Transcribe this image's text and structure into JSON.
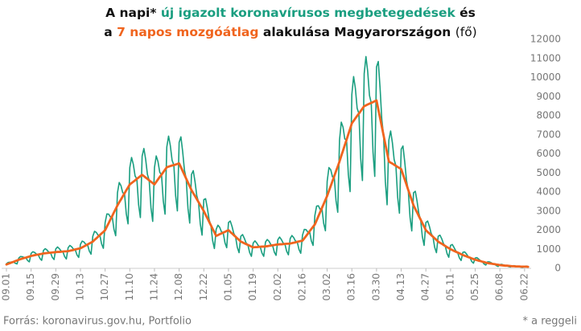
{
  "chart_data": {
    "type": "line",
    "title_parts": [
      "A napi*",
      "és",
      "a",
      "alakulása Magyarországon",
      "(fő)"
    ],
    "source": "Forrás: koronavirus.gov.hu, Portfolio",
    "note": "* a reggeli",
    "categories": [
      "09.01",
      null,
      null,
      null,
      null,
      null,
      null,
      null,
      null,
      null,
      null,
      null,
      null,
      null,
      "09.15",
      null,
      null,
      null,
      null,
      null,
      null,
      null,
      null,
      null,
      null,
      null,
      null,
      null,
      "09.29",
      null,
      null,
      null,
      null,
      null,
      null,
      null,
      null,
      null,
      null,
      null,
      null,
      null,
      "10.13",
      null,
      null,
      null,
      null,
      null,
      null,
      null,
      null,
      null,
      null,
      null,
      null,
      null,
      "10.27",
      null,
      null,
      null,
      null,
      null,
      null,
      null,
      null,
      null,
      null,
      null,
      null,
      null,
      "11.10",
      null,
      null,
      null,
      null,
      null,
      null,
      null,
      null,
      null,
      null,
      null,
      null,
      null,
      "11.24",
      null,
      null,
      null,
      null,
      null,
      null,
      null,
      null,
      null,
      null,
      null,
      null,
      null,
      "12.08",
      null,
      null,
      null,
      null,
      null,
      null,
      null,
      null,
      null,
      null,
      null,
      null,
      null,
      "12.22",
      null,
      null,
      null,
      null,
      null,
      null,
      null,
      null,
      null,
      null,
      null,
      null,
      null,
      "01.05",
      null,
      null,
      null,
      null,
      null,
      null,
      null,
      null,
      null,
      null,
      null,
      null,
      null,
      "01.19",
      null,
      null,
      null,
      null,
      null,
      null,
      null,
      null,
      null,
      null,
      null,
      null,
      null,
      "02.02",
      null,
      null,
      null,
      null,
      null,
      null,
      null,
      null,
      null,
      null,
      null,
      null,
      null,
      "02.16",
      null,
      null,
      null,
      null,
      null,
      null,
      null,
      null,
      null,
      null,
      null,
      null,
      null,
      "03.02",
      null,
      null,
      null,
      null,
      null,
      null,
      null,
      null,
      null,
      null,
      null,
      null,
      null,
      "03.16",
      null,
      null,
      null,
      null,
      null,
      null,
      null,
      null,
      null,
      null,
      null,
      null,
      null,
      "03.30",
      null,
      null,
      null,
      null,
      null,
      null,
      null,
      null,
      null,
      null,
      null,
      null,
      null,
      "04.13",
      null,
      null,
      null,
      null,
      null,
      null,
      null,
      null,
      null,
      null,
      null,
      null,
      null,
      "04.27",
      null,
      null,
      null,
      null,
      null,
      null,
      null,
      null,
      null,
      null,
      null,
      null,
      null,
      "05.11",
      null,
      null,
      null,
      null,
      null,
      null,
      null,
      null,
      null,
      null,
      null,
      null,
      null,
      "05.25",
      null,
      null,
      null,
      null,
      null,
      null,
      null,
      null,
      null,
      null,
      null,
      null,
      null,
      "06.08",
      null,
      null,
      null,
      null,
      null,
      null,
      null,
      null,
      null,
      null,
      null,
      null,
      null,
      "06.22",
      null,
      null
    ],
    "series": [
      {
        "name": "új igazolt koronavírusos megbetegedések",
        "color": "#1a9e80",
        "values": [
          240,
          310,
          320,
          330,
          340,
          270,
          230,
          540,
          620,
          610,
          570,
          560,
          410,
          340,
          780,
          870,
          830,
          750,
          720,
          520,
          420,
          940,
          1030,
          960,
          850,
          820,
          580,
          460,
          1020,
          1120,
          1030,
          910,
          880,
          620,
          490,
          1080,
          1200,
          1130,
          1010,
          990,
          710,
          570,
          1260,
          1430,
          1380,
          1260,
          1250,
          910,
          740,
          1680,
          1940,
          1880,
          1740,
          1740,
          1280,
          1050,
          2400,
          2850,
          2840,
          2690,
          2740,
          2050,
          1710,
          3960,
          4500,
          4330,
          3960,
          3930,
          2860,
          2330,
          5280,
          5810,
          5450,
          4840,
          4690,
          3330,
          2660,
          5880,
          6280,
          5710,
          4920,
          4610,
          3180,
          2460,
          5280,
          5890,
          5590,
          5030,
          4910,
          3530,
          2840,
          6360,
          6930,
          6430,
          5660,
          5410,
          3810,
          3010,
          6600,
          6890,
          6120,
          5150,
          4700,
          3150,
          2370,
          4920,
          5120,
          4550,
          3810,
          3470,
          2320,
          1740,
          3600,
          3650,
          3160,
          2560,
          2260,
          1450,
          1040,
          2040,
          2260,
          2150,
          1920,
          1870,
          1340,
          1080,
          2400,
          2480,
          2200,
          1830,
          1660,
          1100,
          820,
          1680,
          1770,
          1570,
          1330,
          1230,
          830,
          630,
          1320,
          1440,
          1330,
          1180,
          1130,
          800,
          630,
          1380,
          1510,
          1420,
          1250,
          1210,
          850,
          680,
          1500,
          1640,
          1510,
          1330,
          1280,
          900,
          710,
          1560,
          1720,
          1610,
          1430,
          1390,
          990,
          790,
          1740,
          2040,
          2030,
          1900,
          1940,
          1440,
          1200,
          2760,
          3260,
          3280,
          3090,
          3160,
          2360,
          1970,
          4560,
          5280,
          5170,
          4800,
          4830,
          3560,
          2940,
          6720,
          7660,
          7400,
          6780,
          6740,
          4920,
          4020,
          9120,
          10050,
          9430,
          8390,
          8110,
          5770,
          4600,
          10200,
          11100,
          10310,
          9060,
          8670,
          6100,
          4820,
          10560,
          10840,
          9470,
          7800,
          6970,
          4560,
          3330,
          6720,
          7200,
          6590,
          5700,
          5370,
          3720,
          2890,
          6240,
          6410,
          5590,
          4610,
          4110,
          2690,
          1960,
          3960,
          4040,
          3520,
          2880,
          2560,
          1660,
          1200,
          2400,
          2480,
          2200,
          1830,
          1660,
          1100,
          820,
          1680,
          1740,
          1550,
          1290,
          1170,
          780,
          580,
          1200,
          1250,
          1090,
          910,
          830,
          550,
          410,
          840,
          860,
          760,
          620,
          560,
          360,
          270,
          540,
          560,
          480,
          400,
          350,
          230,
          170,
          340,
          340,
          300,
          240,
          220,
          140,
          100,
          200,
          210,
          180,
          150,
          140,
          90,
          70,
          130,
          140,
          120,
          110,
          100,
          60,
          50,
          110,
          120,
          100
        ]
      },
      {
        "name": "7 napos mozgóátlag",
        "color": "#f0641e",
        "values": [
          200,
          240,
          270,
          310,
          340,
          380,
          410,
          450,
          480,
          510,
          540,
          560,
          590,
          620,
          650,
          670,
          690,
          710,
          720,
          740,
          760,
          780,
          790,
          800,
          810,
          820,
          830,
          840,
          850,
          860,
          860,
          870,
          880,
          890,
          890,
          900,
          920,
          940,
          960,
          990,
          1010,
          1030,
          1050,
          1100,
          1150,
          1200,
          1250,
          1300,
          1350,
          1400,
          1490,
          1570,
          1660,
          1740,
          1830,
          1910,
          2000,
          2190,
          2370,
          2560,
          2740,
          2930,
          3110,
          3300,
          3460,
          3610,
          3770,
          3930,
          4090,
          4240,
          4400,
          4470,
          4540,
          4610,
          4690,
          4760,
          4830,
          4900,
          4830,
          4760,
          4690,
          4610,
          4540,
          4470,
          4400,
          4530,
          4660,
          4790,
          4910,
          5040,
          5170,
          5300,
          5330,
          5360,
          5390,
          5410,
          5440,
          5470,
          5500,
          5300,
          5100,
          4900,
          4700,
          4500,
          4300,
          4100,
          3940,
          3790,
          3630,
          3470,
          3310,
          3160,
          3000,
          2810,
          2630,
          2440,
          2260,
          2070,
          1890,
          1700,
          1740,
          1790,
          1830,
          1870,
          1910,
          1960,
          2000,
          1910,
          1830,
          1740,
          1660,
          1570,
          1490,
          1400,
          1360,
          1310,
          1270,
          1230,
          1190,
          1140,
          1100,
          1110,
          1110,
          1120,
          1130,
          1140,
          1140,
          1150,
          1160,
          1180,
          1190,
          1210,
          1220,
          1240,
          1250,
          1260,
          1260,
          1270,
          1280,
          1290,
          1290,
          1300,
          1320,
          1340,
          1360,
          1390,
          1410,
          1430,
          1450,
          1570,
          1690,
          1810,
          1940,
          2060,
          2180,
          2300,
          2510,
          2730,
          2940,
          3160,
          3370,
          3590,
          3800,
          4060,
          4310,
          4570,
          4830,
          5090,
          5340,
          5600,
          5890,
          6170,
          6460,
          6740,
          7030,
          7310,
          7600,
          7730,
          7860,
          7990,
          8110,
          8240,
          8370,
          8500,
          8540,
          8590,
          8630,
          8670,
          8710,
          8760,
          8800,
          8340,
          7890,
          7430,
          6970,
          6510,
          6060,
          5600,
          5540,
          5490,
          5430,
          5370,
          5310,
          5260,
          5200,
          4930,
          4660,
          4390,
          4110,
          3840,
          3570,
          3300,
          3110,
          2930,
          2740,
          2560,
          2370,
          2190,
          2000,
          1910,
          1830,
          1740,
          1660,
          1570,
          1490,
          1400,
          1340,
          1290,
          1230,
          1170,
          1110,
          1060,
          1000,
          960,
          910,
          870,
          830,
          790,
          740,
          700,
          660,
          630,
          590,
          560,
          520,
          490,
          450,
          430,
          400,
          380,
          350,
          330,
          300,
          280,
          260,
          250,
          230,
          220,
          200,
          190,
          170,
          160,
          150,
          140,
          140,
          130,
          120,
          110,
          110,
          100,
          100,
          100,
          90,
          90,
          90,
          90,
          80
        ]
      }
    ],
    "ylim": [
      0,
      12000
    ],
    "yticks": [
      0,
      1000,
      2000,
      3000,
      4000,
      5000,
      6000,
      7000,
      8000,
      9000,
      10000,
      11000,
      12000
    ],
    "grid": false
  }
}
